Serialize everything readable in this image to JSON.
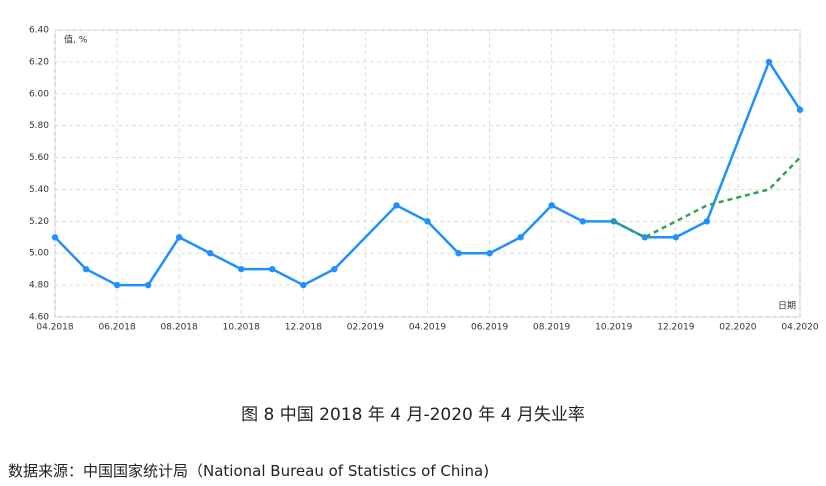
{
  "chart_data": {
    "type": "line",
    "y_label": "值, %",
    "x_label": "日期",
    "x": [
      "04.2018",
      "05.2018",
      "06.2018",
      "07.2018",
      "08.2018",
      "09.2018",
      "10.2018",
      "11.2018",
      "12.2018",
      "01.2019",
      "03.2019",
      "04.2019",
      "05.2019",
      "06.2019",
      "07.2019",
      "08.2019",
      "09.2019",
      "10.2019",
      "11.2019",
      "12.2019",
      "01.2020",
      "03.2020",
      "04.2020"
    ],
    "series": [
      {
        "color": "#1e90ff",
        "style": "solid",
        "markers": true,
        "values": [
          5.1,
          4.9,
          4.8,
          4.8,
          5.1,
          5.0,
          4.9,
          4.9,
          4.8,
          4.9,
          5.3,
          5.2,
          5.0,
          5.0,
          5.1,
          5.3,
          5.2,
          5.2,
          5.1,
          5.1,
          5.2,
          6.2,
          5.9
        ]
      },
      {
        "color": "#2ea44f",
        "style": "dashed",
        "markers": false,
        "values": [
          null,
          null,
          null,
          null,
          null,
          null,
          null,
          null,
          null,
          null,
          null,
          null,
          null,
          null,
          null,
          null,
          null,
          5.2,
          5.1,
          5.2,
          5.3,
          5.4,
          5.6
        ]
      }
    ],
    "xlim": [
      "04.2018",
      "04.2020"
    ],
    "xticks": [
      "04.2018",
      "06.2018",
      "08.2018",
      "10.2018",
      "12.2018",
      "02.2019",
      "04.2019",
      "06.2019",
      "08.2019",
      "10.2019",
      "12.2019",
      "02.2020",
      "04.2020"
    ],
    "ylim": [
      4.6,
      6.4
    ],
    "yticks": [
      {
        "value": 4.6,
        "label": "4.60"
      },
      {
        "value": 4.8,
        "label": "4.80"
      },
      {
        "value": 5.0,
        "label": "5.00"
      },
      {
        "value": 5.2,
        "label": "5.20"
      },
      {
        "value": 5.4,
        "label": "5.40"
      },
      {
        "value": 5.6,
        "label": "5.60"
      },
      {
        "value": 5.8,
        "label": "5.80"
      },
      {
        "value": 6.0,
        "label": "6.00"
      },
      {
        "value": 6.2,
        "label": "6.20"
      },
      {
        "value": 6.4,
        "label": "6.40"
      }
    ],
    "grid": true
  },
  "caption": "图 8 中国 2018 年 4 月-2020 年 4 月失业率",
  "source": "数据来源：中国国家统计局（National Bureau of Statistics of China)"
}
